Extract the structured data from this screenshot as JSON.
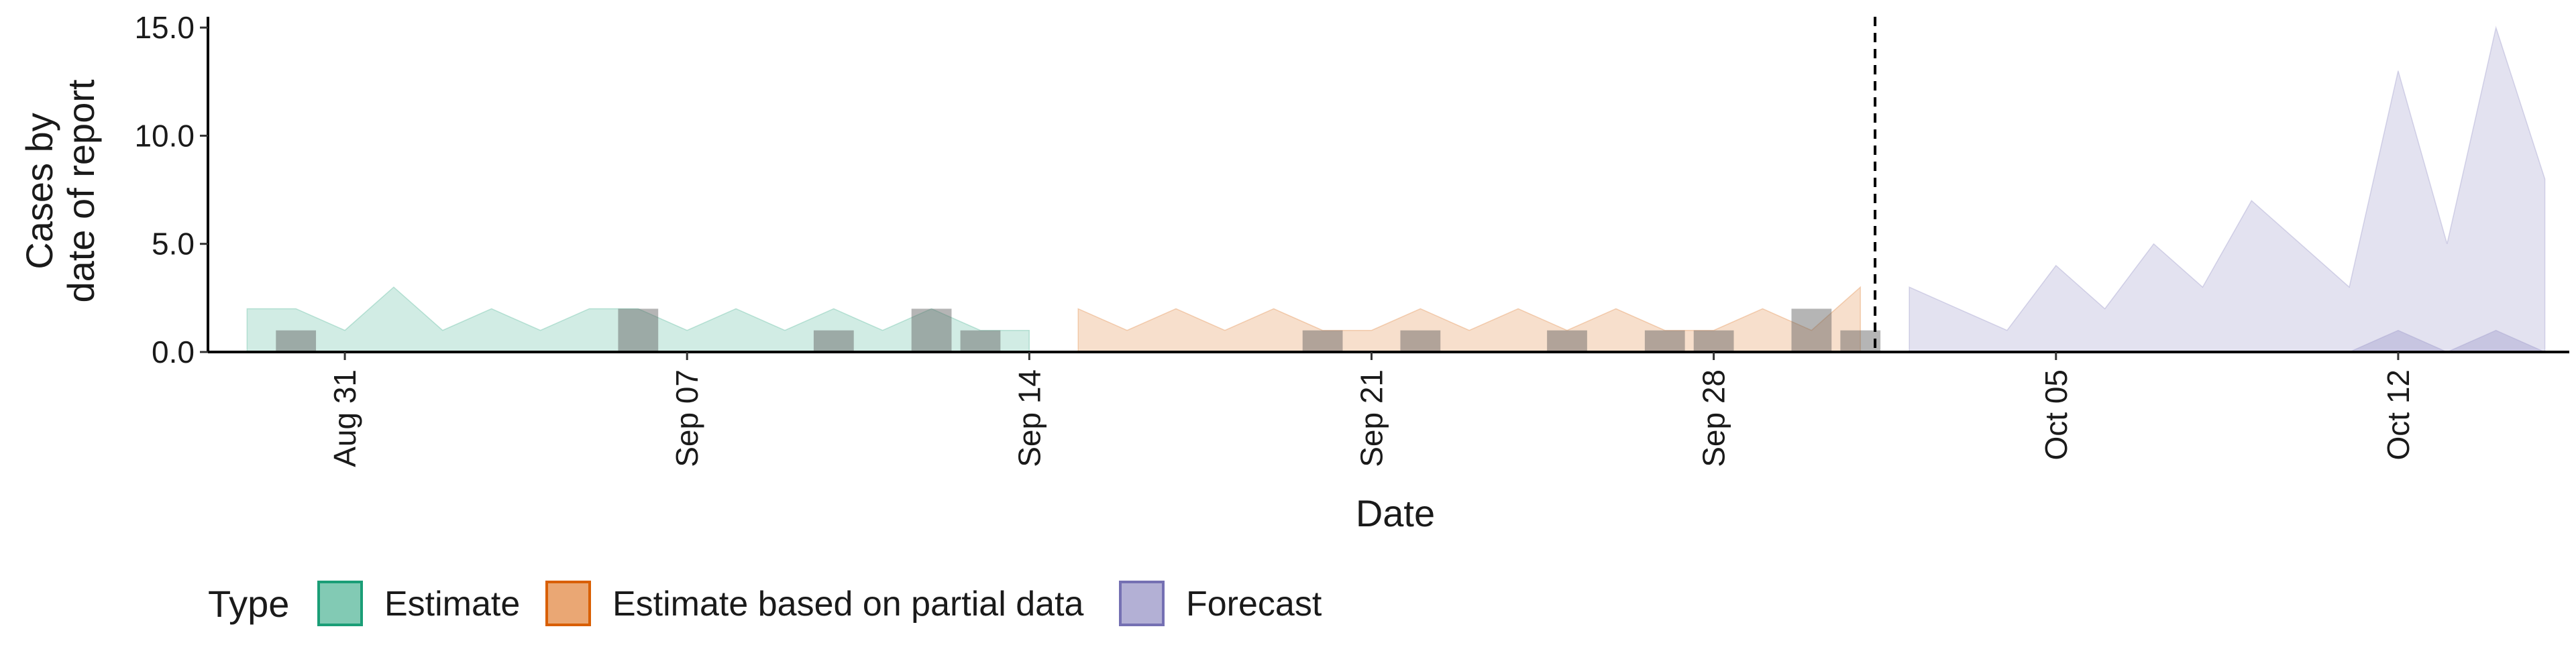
{
  "chart_data": {
    "type": "area",
    "xlabel": "Date",
    "ylabel_lines": [
      "Cases by",
      "date of report"
    ],
    "ylim": [
      0,
      15.5
    ],
    "yticks": [
      0,
      5,
      10,
      15
    ],
    "ytick_labels": [
      "0.0",
      "5.0",
      "10.0",
      "15.0"
    ],
    "xlim_days": [
      -0.8,
      47.5
    ],
    "xticks": [
      {
        "day": 2,
        "label": "Aug 31"
      },
      {
        "day": 9,
        "label": "Sep 07"
      },
      {
        "day": 16,
        "label": "Sep 14"
      },
      {
        "day": 23,
        "label": "Sep 21"
      },
      {
        "day": 30,
        "label": "Sep 28"
      },
      {
        "day": 37,
        "label": "Oct 05"
      },
      {
        "day": 44,
        "label": "Oct 12"
      }
    ],
    "forecast_start_day": 33.3,
    "legend": {
      "title": "Type",
      "position": "bottom",
      "items": [
        {
          "label": "Estimate",
          "fill": "#1b9e77",
          "stroke": "#1b9e77"
        },
        {
          "label": "Estimate based on partial data",
          "fill": "#d95f02",
          "stroke": "#d95f02"
        },
        {
          "label": "Forecast",
          "fill": "#7570b3",
          "stroke": "#7570b3"
        }
      ]
    },
    "series": [
      {
        "name": "Estimate",
        "color": "#1b9e77",
        "band": {
          "days": [
            0,
            1,
            2,
            3,
            4,
            5,
            6,
            7,
            8,
            9,
            10,
            11,
            12,
            13,
            14,
            15,
            16
          ],
          "lower": [
            0,
            0,
            0,
            0,
            0,
            0,
            0,
            0,
            0,
            0,
            0,
            0,
            0,
            0,
            0,
            0,
            0
          ],
          "upper": [
            2,
            2,
            1,
            3,
            1,
            2,
            1,
            2,
            2,
            1,
            2,
            1,
            2,
            1,
            2,
            1,
            1
          ]
        },
        "inner_band": {
          "days": [
            0,
            1,
            2,
            3,
            4,
            5,
            6,
            7,
            8,
            9,
            10,
            11,
            12,
            13,
            14,
            15,
            16
          ],
          "lower": [
            0,
            0,
            0,
            0,
            0,
            0,
            0,
            0,
            0,
            0,
            0,
            0,
            0,
            0,
            0,
            0,
            0
          ],
          "upper": [
            0,
            0,
            0,
            0,
            0,
            0,
            0,
            0,
            0,
            0,
            0,
            0,
            0,
            0,
            0,
            0,
            0
          ]
        }
      },
      {
        "name": "Estimate based on partial data",
        "color": "#d95f02",
        "band": {
          "days": [
            17,
            18,
            19,
            20,
            21,
            22,
            23,
            24,
            25,
            26,
            27,
            28,
            29,
            30,
            31,
            32,
            33
          ],
          "lower": [
            0,
            0,
            0,
            0,
            0,
            0,
            0,
            0,
            0,
            0,
            0,
            0,
            0,
            0,
            0,
            0,
            0
          ],
          "upper": [
            2,
            1,
            2,
            1,
            2,
            1,
            1,
            2,
            1,
            2,
            1,
            2,
            1,
            1,
            2,
            1,
            3
          ]
        },
        "inner_band": {
          "days": [
            17,
            18,
            19,
            20,
            21,
            22,
            23,
            24,
            25,
            26,
            27,
            28,
            29,
            30,
            31,
            32,
            33
          ],
          "lower": [
            0,
            0,
            0,
            0,
            0,
            0,
            0,
            0,
            0,
            0,
            0,
            0,
            0,
            0,
            0,
            0,
            0
          ],
          "upper": [
            0,
            0,
            0,
            0,
            0,
            0,
            0,
            0,
            0,
            0,
            0,
            0,
            0,
            0,
            0,
            0,
            0
          ]
        }
      },
      {
        "name": "Forecast",
        "color": "#7570b3",
        "band": {
          "days": [
            34,
            35,
            36,
            37,
            38,
            39,
            40,
            41,
            42,
            43,
            44,
            45,
            46,
            47
          ],
          "lower": [
            0,
            0,
            0,
            0,
            0,
            0,
            0,
            0,
            0,
            0,
            0,
            0,
            0,
            0
          ],
          "upper": [
            3,
            2,
            1,
            4,
            2,
            5,
            3,
            7,
            5,
            3,
            13,
            5,
            15,
            8
          ]
        },
        "inner_band": {
          "days": [
            34,
            35,
            36,
            37,
            38,
            39,
            40,
            41,
            42,
            43,
            44,
            45,
            46,
            47
          ],
          "lower": [
            0,
            0,
            0,
            0,
            0,
            0,
            0,
            0,
            0,
            0,
            0,
            0,
            0,
            0
          ],
          "upper": [
            0,
            0,
            0,
            0,
            0,
            0,
            0,
            0,
            0,
            0,
            1,
            0,
            1,
            0
          ]
        }
      }
    ],
    "reported_cases": {
      "color": "#5a5a5a",
      "days": [
        1,
        2,
        3,
        4,
        5,
        6,
        7,
        8,
        9,
        10,
        11,
        12,
        13,
        14,
        15,
        16,
        17,
        18,
        19,
        20,
        21,
        22,
        23,
        24,
        25,
        26,
        27,
        28,
        29,
        30,
        31,
        32,
        33
      ],
      "values": [
        1,
        0,
        0,
        0,
        0,
        0,
        0,
        2,
        0,
        0,
        0,
        1,
        0,
        2,
        1,
        0,
        0,
        0,
        0,
        0,
        0,
        1,
        0,
        1,
        0,
        0,
        1,
        0,
        1,
        1,
        0,
        2,
        1
      ]
    }
  }
}
